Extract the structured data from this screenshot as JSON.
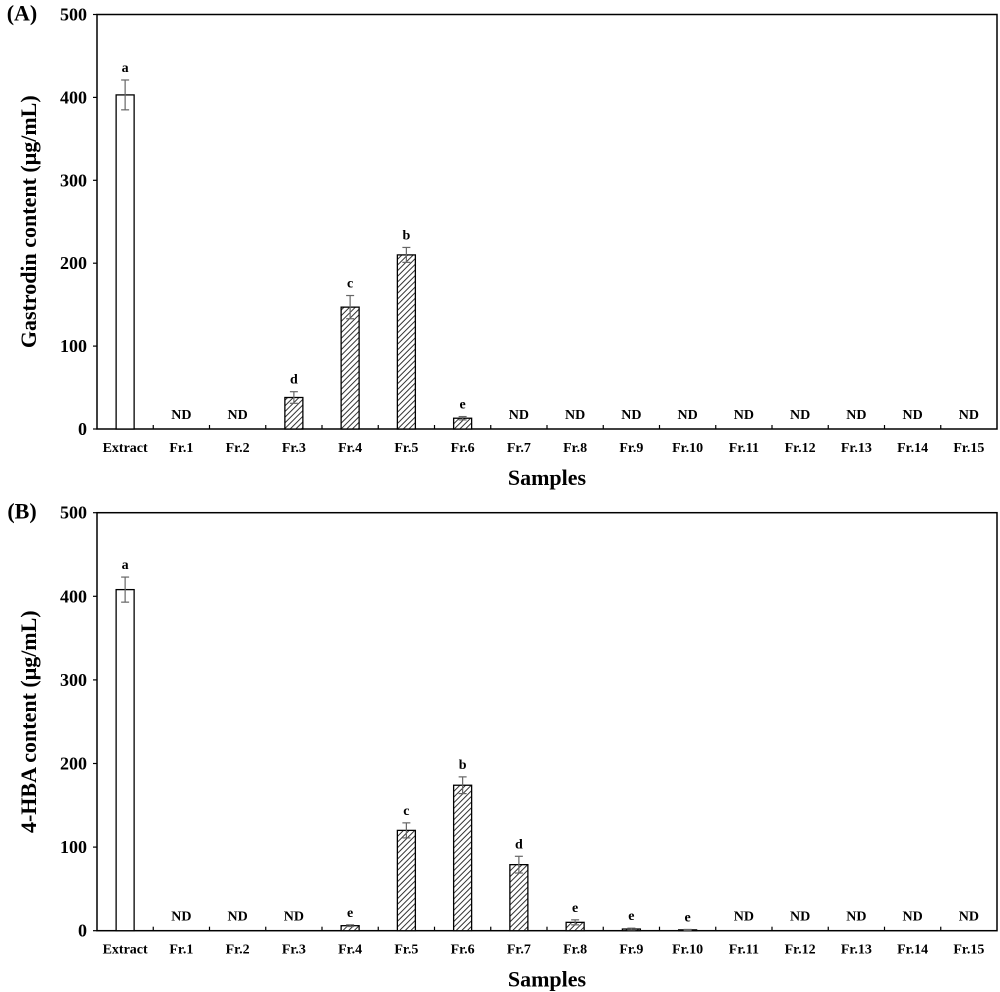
{
  "chart_data": [
    {
      "type": "bar",
      "panel_label": "(A)",
      "xlabel": "Samples",
      "ylabel": "Gastrodin content (μg/mL)",
      "ylim": [
        0,
        500
      ],
      "yticks": [
        0,
        100,
        200,
        300,
        400,
        500
      ],
      "grid": false,
      "categories": [
        "Extract",
        "Fr.1",
        "Fr.2",
        "Fr.3",
        "Fr.4",
        "Fr.5",
        "Fr.6",
        "Fr.7",
        "Fr.8",
        "Fr.9",
        "Fr.10",
        "Fr.11",
        "Fr.12",
        "Fr.13",
        "Fr.14",
        "Fr.15"
      ],
      "values": [
        403,
        null,
        null,
        38,
        147,
        210,
        13,
        null,
        null,
        null,
        null,
        null,
        null,
        null,
        null,
        null
      ],
      "errors": [
        18,
        null,
        null,
        7,
        14,
        9,
        2,
        null,
        null,
        null,
        null,
        null,
        null,
        null,
        null,
        null
      ],
      "labels": [
        "a",
        "ND",
        "ND",
        "d",
        "c",
        "b",
        "e",
        "ND",
        "ND",
        "ND",
        "ND",
        "ND",
        "ND",
        "ND",
        "ND",
        "ND"
      ],
      "fill": [
        "open",
        "hatched",
        "hatched",
        "hatched",
        "hatched",
        "hatched",
        "hatched",
        "hatched",
        "hatched",
        "hatched",
        "hatched",
        "hatched",
        "hatched",
        "hatched",
        "hatched",
        "hatched"
      ]
    },
    {
      "type": "bar",
      "panel_label": "(B)",
      "xlabel": "Samples",
      "ylabel": "4-HBA content (μg/mL)",
      "ylim": [
        0,
        500
      ],
      "yticks": [
        0,
        100,
        200,
        300,
        400,
        500
      ],
      "grid": false,
      "categories": [
        "Extract",
        "Fr.1",
        "Fr.2",
        "Fr.3",
        "Fr.4",
        "Fr.5",
        "Fr.6",
        "Fr.7",
        "Fr.8",
        "Fr.9",
        "Fr.10",
        "Fr.11",
        "Fr.12",
        "Fr.13",
        "Fr.14",
        "Fr.15"
      ],
      "values": [
        408,
        null,
        null,
        null,
        6,
        120,
        174,
        79,
        10,
        2,
        1,
        null,
        null,
        null,
        null,
        null
      ],
      "errors": [
        15,
        null,
        null,
        null,
        1,
        9,
        10,
        10,
        3,
        1,
        0.5,
        null,
        null,
        null,
        null,
        null
      ],
      "labels": [
        "a",
        "ND",
        "ND",
        "ND",
        "e",
        "c",
        "b",
        "d",
        "e",
        "e",
        "e",
        "ND",
        "ND",
        "ND",
        "ND",
        "ND"
      ],
      "fill": [
        "open",
        "hatched",
        "hatched",
        "hatched",
        "hatched",
        "hatched",
        "hatched",
        "hatched",
        "hatched",
        "hatched",
        "hatched",
        "hatched",
        "hatched",
        "hatched",
        "hatched",
        "hatched"
      ]
    }
  ]
}
